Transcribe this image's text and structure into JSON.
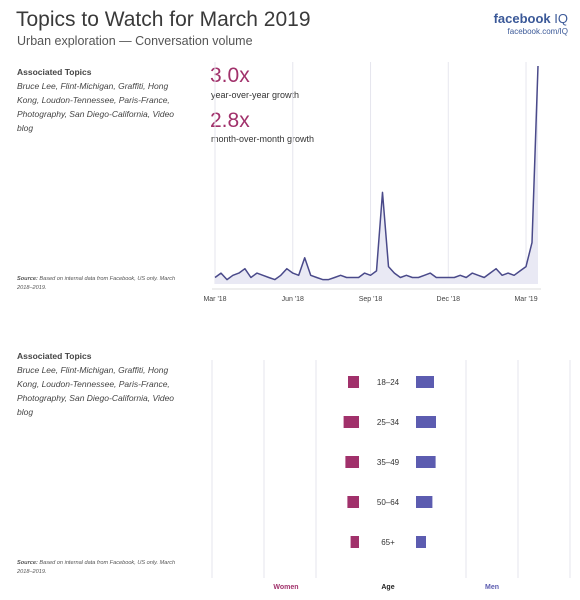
{
  "header": {
    "title": "Topics to Watch for March 2019",
    "subtitle": "Urban exploration — Conversation volume",
    "brand_name": "facebook",
    "brand_suffix": "IQ",
    "brand_url": "facebook.com/IQ"
  },
  "colors": {
    "women": "#a1316b",
    "men": "#5c5cb0",
    "line": "#4a4a8a",
    "accent": "#a1316b"
  },
  "section1": {
    "topics_heading": "Associated Topics",
    "topics_text": "Bruce Lee, Flint-Michigan, Graffiti, Hong Kong, Loudon-Tennessee, Paris-France, Photography, San Diego-California, Video blog",
    "source_label": "Source:",
    "source_text": "Based on internal data from Facebook, US only. March 2018–2019.",
    "stats": [
      {
        "value": "3.0x",
        "label": "year-over-year growth"
      },
      {
        "value": "2.8x",
        "label": "month-over-month growth"
      }
    ]
  },
  "section2": {
    "topics_heading": "Associated Topics",
    "topics_text": "Bruce Lee, Flint-Michigan, Graffiti, Hong Kong, Loudon-Tennessee, Paris-France, Photography, San Diego-California, Video blog",
    "source_label": "Source:",
    "source_text": "Based on internal data from Facebook, US only. March 2018–2019."
  },
  "chart_data": [
    {
      "type": "area",
      "title": "",
      "xlabel": "",
      "ylabel": "",
      "x_ticks": [
        "Mar '18",
        "Jun '18",
        "Sep '18",
        "Dec '18",
        "Mar '19"
      ],
      "x_tick_week": [
        0,
        13,
        26,
        39,
        52
      ],
      "grid": "vertical",
      "ylim": [
        0,
        100
      ],
      "series": [
        {
          "values": [
            3,
            5,
            2,
            4,
            5,
            7,
            3,
            5,
            4,
            3,
            2,
            4,
            7,
            5,
            4,
            12,
            4,
            3,
            2,
            2,
            3,
            4,
            3,
            3,
            3,
            5,
            4,
            6,
            42,
            8,
            5,
            3,
            4,
            3,
            3,
            4,
            5,
            3,
            3,
            3,
            3,
            4,
            3,
            5,
            4,
            3,
            5,
            7,
            4,
            5,
            4,
            6,
            8,
            19,
            100
          ]
        }
      ]
    },
    {
      "type": "bar",
      "title": "",
      "categories": [
        "18–24",
        "25–34",
        "35–49",
        "50–64",
        "65+"
      ],
      "legend": {
        "women": "Women",
        "age": "Age",
        "men": "Men"
      },
      "series": [
        {
          "name": "Women",
          "values": [
            0.55,
            0.77,
            0.68,
            0.58,
            0.42
          ]
        },
        {
          "name": "Men",
          "values": [
            0.9,
            1.0,
            0.98,
            0.82,
            0.5
          ]
        }
      ]
    }
  ]
}
